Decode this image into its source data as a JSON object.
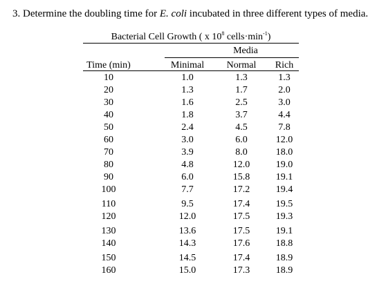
{
  "question": {
    "prefix": "3. Determine the doubling time for ",
    "organism": "E. coli",
    "suffix": " incubated in three different types of media."
  },
  "table": {
    "title_pre": "Bacterial Cell Growth ( x 10",
    "title_exp": "8",
    "title_mid": " cells·min",
    "title_exp2": "-1",
    "title_post": ")",
    "group_header": "Media",
    "columns": [
      "Time (min)",
      "Minimal",
      "Normal",
      "Rich"
    ],
    "rows": [
      [
        "10",
        "1.0",
        "1.3",
        "1.3"
      ],
      [
        "20",
        "1.3",
        "1.7",
        "2.0"
      ],
      [
        "30",
        "1.6",
        "2.5",
        "3.0"
      ],
      [
        "40",
        "1.8",
        "3.7",
        "4.4"
      ],
      [
        "50",
        "2.4",
        "4.5",
        "7.8"
      ],
      [
        "60",
        "3.0",
        "6.0",
        "12.0"
      ],
      [
        "70",
        "3.9",
        "8.0",
        "18.0"
      ],
      [
        "80",
        "4.8",
        "12.0",
        "19.0"
      ],
      [
        "90",
        "6.0",
        "15.8",
        "19.1"
      ],
      [
        "100",
        "7.7",
        "17.2",
        "19.4"
      ],
      [
        "110",
        "9.5",
        "17.4",
        "19.5"
      ],
      [
        "120",
        "12.0",
        "17.5",
        "19.3"
      ],
      [
        "130",
        "13.6",
        "17.5",
        "19.1"
      ],
      [
        "140",
        "14.3",
        "17.6",
        "18.8"
      ],
      [
        "150",
        "14.5",
        "17.4",
        "18.9"
      ],
      [
        "160",
        "15.0",
        "17.3",
        "18.9"
      ]
    ]
  }
}
